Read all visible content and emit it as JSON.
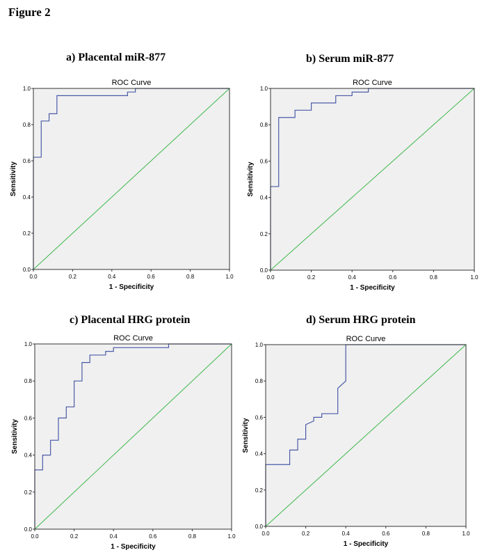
{
  "figure_title": "Figure 2",
  "colors": {
    "roc_line": "#4a5aa8",
    "reference_line": "#3cb84a",
    "plot_bg": "#f0f0f0"
  },
  "chart_data": [
    {
      "panel_title": "a) Placental miR-877",
      "type": "line",
      "title": "ROC Curve",
      "xlabel": "1 - Specificity",
      "ylabel": "Sensitivity",
      "xlim": [
        0,
        1
      ],
      "ylim": [
        0,
        1
      ],
      "x_ticks": [
        "0.0",
        "0.2",
        "0.4",
        "0.6",
        "0.8",
        "1.0"
      ],
      "y_ticks": [
        "0.0",
        "0.2",
        "0.4",
        "0.6",
        "0.8",
        "1.0"
      ],
      "roc": [
        [
          0,
          0
        ],
        [
          0,
          0.62
        ],
        [
          0.04,
          0.62
        ],
        [
          0.04,
          0.82
        ],
        [
          0.08,
          0.82
        ],
        [
          0.08,
          0.86
        ],
        [
          0.12,
          0.86
        ],
        [
          0.12,
          0.88
        ],
        [
          0.12,
          0.96
        ],
        [
          0.48,
          0.96
        ],
        [
          0.48,
          0.98
        ],
        [
          0.52,
          0.98
        ],
        [
          0.52,
          1.0
        ],
        [
          1.0,
          1.0
        ]
      ],
      "reference": [
        [
          0,
          0
        ],
        [
          1,
          1
        ]
      ]
    },
    {
      "panel_title": "b) Serum miR-877",
      "type": "line",
      "title": "ROC Curve",
      "xlabel": "1 - Specificity",
      "ylabel": "Sensitivity",
      "xlim": [
        0,
        1
      ],
      "ylim": [
        0,
        1
      ],
      "x_ticks": [
        "0.0",
        "0.2",
        "0.4",
        "0.6",
        "0.8",
        "1.0"
      ],
      "y_ticks": [
        "0.0",
        "0.2",
        "0.4",
        "0.6",
        "0.8",
        "1.0"
      ],
      "roc": [
        [
          0,
          0
        ],
        [
          0,
          0.46
        ],
        [
          0.04,
          0.46
        ],
        [
          0.04,
          0.84
        ],
        [
          0.12,
          0.84
        ],
        [
          0.12,
          0.88
        ],
        [
          0.2,
          0.88
        ],
        [
          0.2,
          0.92
        ],
        [
          0.32,
          0.92
        ],
        [
          0.32,
          0.96
        ],
        [
          0.4,
          0.96
        ],
        [
          0.4,
          0.98
        ],
        [
          0.48,
          0.98
        ],
        [
          0.48,
          1.0
        ],
        [
          1.0,
          1.0
        ]
      ],
      "reference": [
        [
          0,
          0
        ],
        [
          1,
          1
        ]
      ]
    },
    {
      "panel_title": "c) Placental HRG protein",
      "type": "line",
      "title": "ROC Curve",
      "xlabel": "1 - Specificity",
      "ylabel": "Sensitivity",
      "xlim": [
        0,
        1
      ],
      "ylim": [
        0,
        1
      ],
      "x_ticks": [
        "0.0",
        "0.2",
        "0.4",
        "0.6",
        "0.8",
        "1.0"
      ],
      "y_ticks": [
        "0.0",
        "0.2",
        "0.4",
        "0.6",
        "0.8",
        "1.0"
      ],
      "roc": [
        [
          0,
          0
        ],
        [
          0,
          0.32
        ],
        [
          0.04,
          0.32
        ],
        [
          0.04,
          0.4
        ],
        [
          0.08,
          0.4
        ],
        [
          0.08,
          0.48
        ],
        [
          0.12,
          0.48
        ],
        [
          0.12,
          0.6
        ],
        [
          0.16,
          0.6
        ],
        [
          0.16,
          0.66
        ],
        [
          0.2,
          0.66
        ],
        [
          0.2,
          0.8
        ],
        [
          0.24,
          0.8
        ],
        [
          0.24,
          0.9
        ],
        [
          0.28,
          0.9
        ],
        [
          0.28,
          0.94
        ],
        [
          0.36,
          0.94
        ],
        [
          0.36,
          0.96
        ],
        [
          0.4,
          0.96
        ],
        [
          0.4,
          0.98
        ],
        [
          0.68,
          0.98
        ],
        [
          0.68,
          1.0
        ],
        [
          1.0,
          1.0
        ]
      ],
      "reference": [
        [
          0,
          0
        ],
        [
          1,
          1
        ]
      ]
    },
    {
      "panel_title": "d) Serum HRG protein",
      "type": "line",
      "title": "ROC Curve",
      "xlabel": "1 - Specificity",
      "ylabel": "Sensitivity",
      "xlim": [
        0,
        1
      ],
      "ylim": [
        0,
        1
      ],
      "x_ticks": [
        "0.0",
        "0.2",
        "0.4",
        "0.6",
        "0.8",
        "1.0"
      ],
      "y_ticks": [
        "0.0",
        "0.2",
        "0.4",
        "0.6",
        "0.8",
        "1.0"
      ],
      "roc": [
        [
          0,
          0
        ],
        [
          0,
          0.34
        ],
        [
          0.12,
          0.34
        ],
        [
          0.12,
          0.42
        ],
        [
          0.16,
          0.42
        ],
        [
          0.16,
          0.48
        ],
        [
          0.2,
          0.48
        ],
        [
          0.2,
          0.56
        ],
        [
          0.24,
          0.58
        ],
        [
          0.24,
          0.6
        ],
        [
          0.28,
          0.6
        ],
        [
          0.28,
          0.62
        ],
        [
          0.36,
          0.62
        ],
        [
          0.36,
          0.76
        ],
        [
          0.4,
          0.8
        ],
        [
          0.4,
          1.0
        ],
        [
          1.0,
          1.0
        ]
      ],
      "reference": [
        [
          0,
          0
        ],
        [
          1,
          1
        ]
      ]
    }
  ]
}
